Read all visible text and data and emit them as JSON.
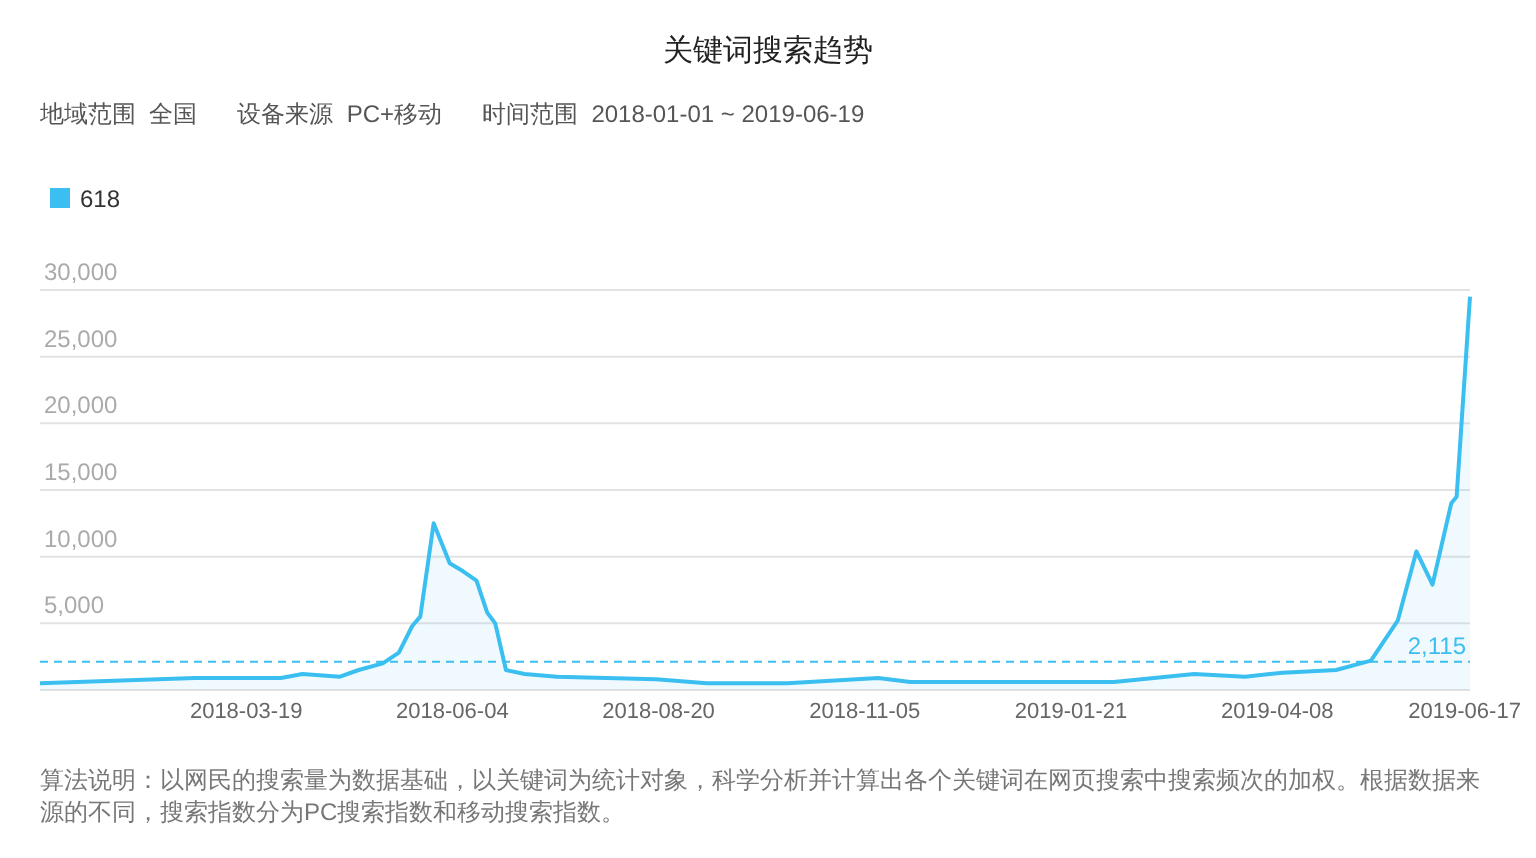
{
  "chart_data": {
    "type": "area",
    "title": "关键词搜索趋势",
    "subtitle": "地域范围  全国      设备来源  PC+移动      时间范围  2018-01-01 ~ 2019-06-19",
    "x": [
      "2018-01-01",
      "2018-02-28",
      "2018-04-01",
      "2018-04-09",
      "2018-04-23",
      "2018-04-30",
      "2018-05-09",
      "2018-05-15",
      "2018-05-20",
      "2018-05-23",
      "2018-05-28",
      "2018-06-03",
      "2018-06-08",
      "2018-06-13",
      "2018-06-17",
      "2018-06-20",
      "2018-06-24",
      "2018-07-01",
      "2018-07-13",
      "2018-08-19",
      "2018-09-07",
      "2018-10-07",
      "2018-11-10",
      "2018-11-22",
      "2019-02-06",
      "2019-03-08",
      "2019-03-27",
      "2019-04-10",
      "2019-04-30",
      "2019-05-13",
      "2019-05-19",
      "2019-05-23",
      "2019-05-30",
      "2019-06-05",
      "2019-06-12",
      "2019-06-14",
      "2019-06-19"
    ],
    "series": [
      {
        "name": "618",
        "color": "#3bbff0",
        "values": [
          500,
          900,
          900,
          1200,
          1000,
          1500,
          2000,
          2800,
          4800,
          5500,
          12500,
          9500,
          8900,
          8200,
          5800,
          5000,
          1500,
          1200,
          1000,
          800,
          500,
          500,
          900,
          600,
          600,
          1200,
          1000,
          1300,
          1500,
          2200,
          4000,
          5200,
          10400,
          7900,
          14000,
          14500,
          29500
        ]
      }
    ],
    "xlim": [
      "2018-01-01",
      "2019-06-19"
    ],
    "xticks": [
      "2018-03-19",
      "2018-06-04",
      "2018-08-20",
      "2018-11-05",
      "2019-01-21",
      "2019-04-08",
      "2019-06-17"
    ],
    "ylim": [
      0,
      30000
    ],
    "yticks": [
      {
        "value": 5000,
        "label": "5,000"
      },
      {
        "value": 10000,
        "label": "10,000"
      },
      {
        "value": 15000,
        "label": "15,000"
      },
      {
        "value": 20000,
        "label": "20,000"
      },
      {
        "value": 25000,
        "label": "25,000"
      },
      {
        "value": 30000,
        "label": "30,000"
      }
    ],
    "ref_lines": [
      {
        "axis": "y",
        "value": 2115,
        "label": "2,115",
        "color": "#3bbff0",
        "line_style": "dashed"
      }
    ],
    "grid": "y",
    "legend": "top left",
    "annotations": [
      "算法说明：以网民的搜索量为数据基础，以关键词为统计对象，科学分析并计算出各个关键词在网页搜索中搜索频次的加权。根据数据来源的不同，搜索指数分为PC搜索指数和移动搜索指数。"
    ]
  }
}
